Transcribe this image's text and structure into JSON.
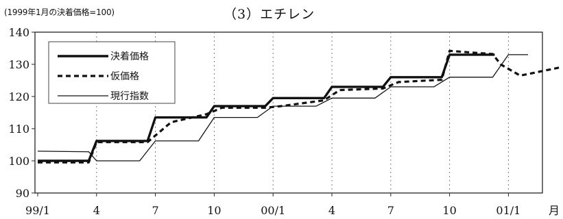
{
  "chart_data": {
    "type": "line",
    "title": "（3）エチレン",
    "subtitle": "(1999年1月の決着価格=100)",
    "xlabel": "月",
    "ylabel": "",
    "ylim": [
      90,
      140
    ],
    "yticks": [
      90,
      100,
      110,
      120,
      130,
      140
    ],
    "x_tick_labels": [
      "99/1",
      "4",
      "7",
      "10",
      "00/1",
      "4",
      "7",
      "10",
      "01/1"
    ],
    "grid": "vertical dotted lines at each tick",
    "legend_position": "top-left",
    "series": [
      {
        "name": "決着価格",
        "style": "thick-solid",
        "x": [
          0,
          2.6,
          3,
          5.6,
          6,
          8.6,
          9,
          11.6,
          12,
          14.6,
          15,
          17.6,
          18,
          20.6,
          21,
          23.3
        ],
        "y": [
          100,
          100,
          106.2,
          106.2,
          113.5,
          113.5,
          117,
          117,
          119.5,
          119.5,
          123,
          123,
          126,
          126,
          133,
          133
        ]
      },
      {
        "name": "仮価格",
        "style": "thick-dashed",
        "x": [
          0,
          2.6,
          3,
          5.6,
          6.8,
          8.6,
          9.4,
          11.6,
          12.4,
          14.6,
          15.4,
          17.6,
          18.4,
          20.6,
          21,
          23.2,
          23.6,
          24.6,
          26.6
        ],
        "y": [
          99.5,
          99.5,
          105.8,
          105.8,
          112,
          114.5,
          116.5,
          116.5,
          117,
          118.8,
          122,
          122.5,
          124.5,
          125.2,
          134.2,
          133.2,
          130,
          126.5,
          129
        ]
      },
      {
        "name": "現行指数",
        "style": "thin-solid",
        "x": [
          0,
          2.6,
          3,
          5.2,
          6,
          8.2,
          9,
          11.2,
          12,
          14.2,
          15,
          17.2,
          18,
          20.2,
          21,
          23.2,
          24,
          25
        ],
        "y": [
          103,
          102.8,
          100,
          100,
          106.2,
          106.2,
          113.5,
          113.5,
          117,
          117,
          119.5,
          119.5,
          123,
          123,
          126,
          126,
          133,
          133
        ]
      }
    ]
  }
}
